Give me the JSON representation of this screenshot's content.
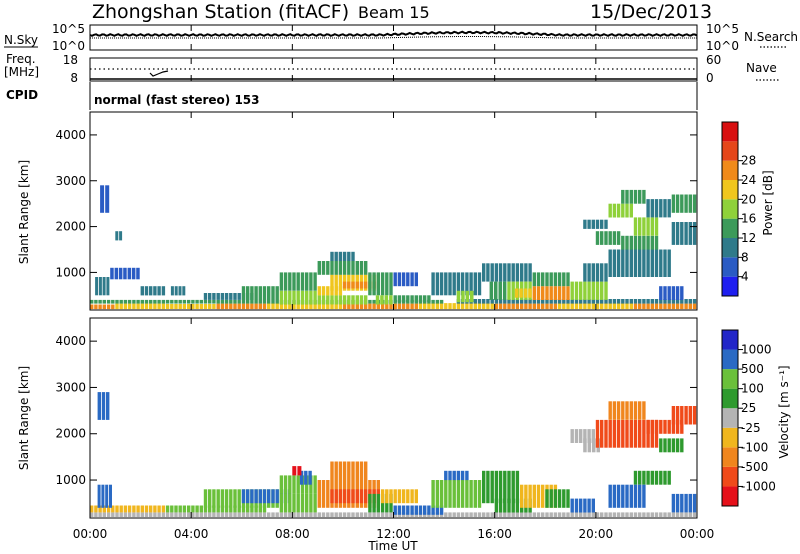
{
  "header": {
    "station": "Zhongshan Station (fitACF)",
    "beam": "Beam 15",
    "date": "15/Dec/2013"
  },
  "noise_panel": {
    "left_label": "N.Sky",
    "right_label": "N.Search",
    "left_ticks": [
      "10^5",
      "10^0"
    ],
    "right_ticks": [
      "10^5",
      "10^0"
    ]
  },
  "freq_panel": {
    "left_label_line1": "Freq.",
    "left_label_line2": "[MHz]",
    "right_label": "Nave",
    "left_ticks": [
      "18",
      "8"
    ],
    "right_ticks": [
      "60",
      "0"
    ]
  },
  "cpid_panel": {
    "label": "CPID",
    "mode_text": "normal (fast stereo) 153"
  },
  "x_axis": {
    "title": "Time UT",
    "ticks": [
      "00:00",
      "04:00",
      "08:00",
      "12:00",
      "16:00",
      "20:00",
      "00:00"
    ]
  },
  "colors": {
    "power_scale": [
      "#1f1ff0",
      "#2a5bc4",
      "#2f7a8a",
      "#3c9a5a",
      "#8fd13a",
      "#f0c61e",
      "#f08a1a",
      "#e5461a",
      "#d80f10"
    ],
    "velocity_scale": [
      "#e5101a",
      "#f04a1a",
      "#f0861e",
      "#f0b61e",
      "#b4b4b4",
      "#2e9a2e",
      "#6ac03a",
      "#2a6ac4",
      "#2226c8"
    ]
  },
  "chart_data": [
    {
      "type": "heatmap",
      "name": "power",
      "ylabel": "Slant Range [km]",
      "yticks": [
        "1000",
        "2000",
        "3000",
        "4000"
      ],
      "ylim": [
        180,
        4500
      ],
      "xlim": [
        0,
        24
      ],
      "colorbar": {
        "label": "Power [dB]",
        "ticks": [
          "4",
          "8",
          "12",
          "16",
          "20",
          "24",
          "28"
        ],
        "range": [
          0,
          30
        ]
      },
      "cells": [
        [
          0,
          1.0,
          200,
          300,
          24
        ],
        [
          1,
          3.0,
          200,
          320,
          20
        ],
        [
          3,
          5.0,
          200,
          310,
          22
        ],
        [
          5,
          7.0,
          200,
          320,
          24
        ],
        [
          7,
          10.0,
          200,
          330,
          22
        ],
        [
          10,
          13.0,
          200,
          320,
          24
        ],
        [
          13,
          16.0,
          200,
          330,
          20
        ],
        [
          16,
          18.5,
          200,
          320,
          24
        ],
        [
          18.5,
          21.5,
          200,
          330,
          20
        ],
        [
          21.5,
          24,
          200,
          320,
          24
        ],
        [
          0,
          14.0,
          320,
          400,
          12
        ],
        [
          14.5,
          24,
          320,
          420,
          10
        ],
        [
          4.5,
          6.5,
          400,
          550,
          8
        ],
        [
          6,
          7.5,
          400,
          700,
          12
        ],
        [
          7.5,
          9.0,
          300,
          600,
          16
        ],
        [
          7.5,
          9.0,
          600,
          1000,
          12
        ],
        [
          9.0,
          11.0,
          300,
          500,
          16
        ],
        [
          9.0,
          10.0,
          500,
          700,
          20
        ],
        [
          9.5,
          11.5,
          600,
          950,
          22
        ],
        [
          10.0,
          11.5,
          650,
          800,
          26
        ],
        [
          9.0,
          11.0,
          950,
          1250,
          12
        ],
        [
          9.5,
          10.5,
          1250,
          1450,
          8
        ],
        [
          11.0,
          12.0,
          500,
          1000,
          12
        ],
        [
          11.3,
          12.0,
          300,
          500,
          16
        ],
        [
          12.0,
          13.0,
          700,
          1000,
          6
        ],
        [
          13.5,
          15.5,
          500,
          1000,
          8
        ],
        [
          14.5,
          15.2,
          350,
          600,
          18
        ],
        [
          15.5,
          17.5,
          800,
          1200,
          10
        ],
        [
          15.8,
          16.5,
          400,
          800,
          14
        ],
        [
          16.5,
          17.5,
          400,
          800,
          16
        ],
        [
          16.8,
          17.5,
          450,
          650,
          22
        ],
        [
          17.5,
          19.0,
          400,
          700,
          26
        ],
        [
          17.5,
          19.0,
          700,
          1000,
          14
        ],
        [
          19.0,
          20.5,
          400,
          800,
          18
        ],
        [
          19.5,
          20.5,
          800,
          1200,
          8
        ],
        [
          20.5,
          23.0,
          900,
          1500,
          8
        ],
        [
          21.0,
          22.5,
          1500,
          1800,
          12
        ],
        [
          19.5,
          20.5,
          1950,
          2150,
          8
        ],
        [
          20.0,
          21.0,
          1600,
          1900,
          12
        ],
        [
          20.5,
          21.5,
          2200,
          2500,
          16
        ],
        [
          21.0,
          22.0,
          2500,
          2800,
          12
        ],
        [
          21.5,
          22.5,
          1800,
          2200,
          16
        ],
        [
          22.0,
          23.0,
          2200,
          2600,
          10
        ],
        [
          23.0,
          24.0,
          2300,
          2700,
          12
        ],
        [
          23.0,
          24.0,
          1600,
          2100,
          8
        ],
        [
          0.2,
          0.8,
          500,
          900,
          8
        ],
        [
          0.4,
          0.8,
          2300,
          2900,
          6
        ],
        [
          0.8,
          2.0,
          850,
          1100,
          6
        ],
        [
          1.0,
          1.3,
          1700,
          1900,
          8
        ],
        [
          2.0,
          3.0,
          500,
          700,
          10
        ],
        [
          3.2,
          3.8,
          500,
          700,
          8
        ],
        [
          12.0,
          13.5,
          350,
          500,
          14
        ],
        [
          22.5,
          23.5,
          400,
          700,
          6
        ]
      ]
    },
    {
      "type": "heatmap",
      "name": "velocity",
      "ylabel": "Slant Range [km]",
      "yticks": [
        "1000",
        "2000",
        "3000",
        "4000"
      ],
      "ylim": [
        180,
        4500
      ],
      "xlim": [
        0,
        24
      ],
      "colorbar": {
        "label": "Velocity [m s⁻¹]",
        "ticks": [
          "-1000",
          "-500",
          "-100",
          "-25",
          "25",
          "100",
          "500",
          "1000"
        ],
        "range": [
          -1500,
          1500
        ]
      },
      "cells": [
        [
          0,
          24,
          200,
          300,
          20
        ],
        [
          0,
          3.0,
          300,
          450,
          -80
        ],
        [
          3.0,
          7.0,
          300,
          450,
          300
        ],
        [
          0.3,
          0.9,
          400,
          900,
          800
        ],
        [
          0.3,
          0.8,
          2300,
          2900,
          600
        ],
        [
          4.5,
          7.5,
          400,
          800,
          200
        ],
        [
          6.0,
          8.0,
          500,
          800,
          900
        ],
        [
          7.5,
          9.0,
          300,
          700,
          400
        ],
        [
          7.5,
          9.0,
          700,
          1100,
          120
        ],
        [
          8.3,
          8.8,
          900,
          1200,
          800
        ],
        [
          8.0,
          8.4,
          1100,
          1300,
          -1200
        ],
        [
          9.0,
          11.5,
          400,
          1000,
          -300
        ],
        [
          9.5,
          11.5,
          500,
          800,
          -600
        ],
        [
          9.5,
          11.0,
          1000,
          1400,
          -150
        ],
        [
          11.0,
          12.0,
          300,
          700,
          30
        ],
        [
          11.5,
          13.0,
          500,
          800,
          -100
        ],
        [
          12.0,
          14.0,
          250,
          450,
          700
        ],
        [
          13.5,
          15.5,
          400,
          1000,
          150
        ],
        [
          14.0,
          15.0,
          1000,
          1200,
          600
        ],
        [
          15.5,
          17.0,
          500,
          1200,
          60
        ],
        [
          16.0,
          17.5,
          300,
          600,
          40
        ],
        [
          17.0,
          18.5,
          400,
          900,
          -80
        ],
        [
          18.0,
          19.0,
          400,
          800,
          30
        ],
        [
          19.0,
          20.0,
          300,
          600,
          800
        ],
        [
          19.0,
          20.0,
          1800,
          2100,
          0
        ],
        [
          19.5,
          20.2,
          1600,
          1900,
          -20
        ],
        [
          20.0,
          22.5,
          1700,
          2300,
          -600
        ],
        [
          20.5,
          22.0,
          2300,
          2700,
          -400
        ],
        [
          22.0,
          23.5,
          2000,
          2300,
          -700
        ],
        [
          23.0,
          24.0,
          2200,
          2600,
          -600
        ],
        [
          22.5,
          23.5,
          1600,
          1900,
          40
        ],
        [
          21.5,
          23.0,
          900,
          1200,
          30
        ],
        [
          23.0,
          24.0,
          300,
          700,
          600
        ],
        [
          20.5,
          22.0,
          400,
          900,
          500
        ]
      ]
    }
  ]
}
